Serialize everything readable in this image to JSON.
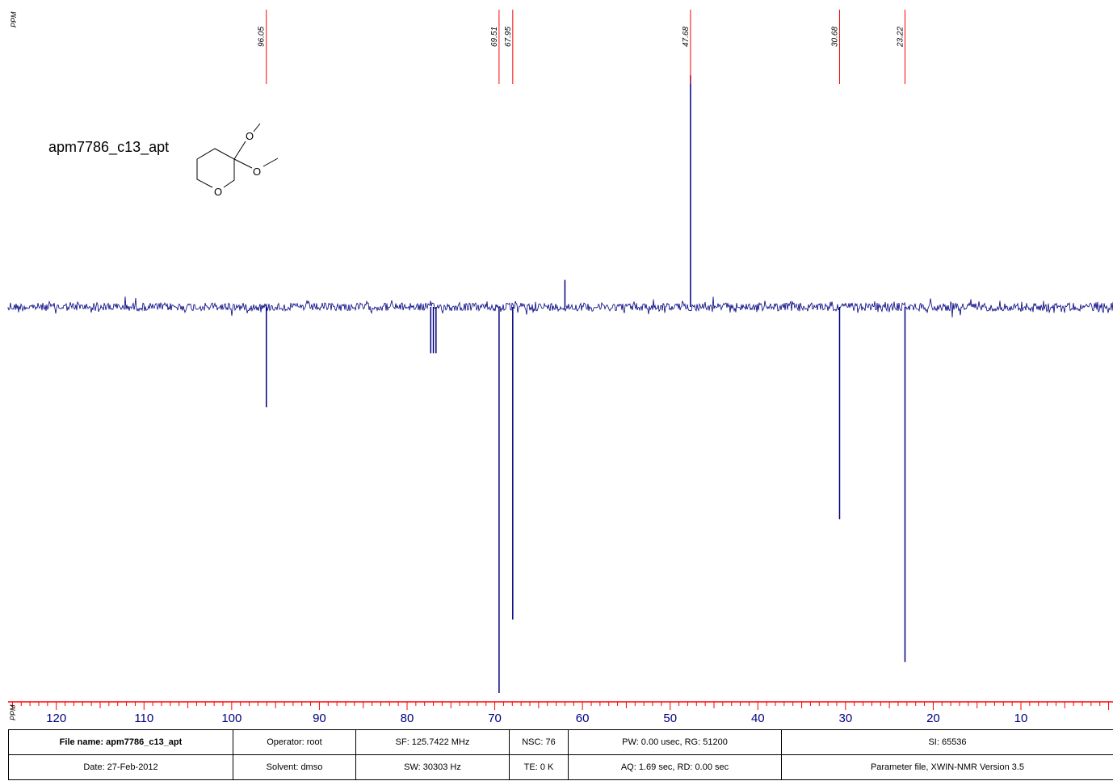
{
  "chart_data": {
    "type": "line",
    "title": "apm7786_c13_apt",
    "axis_unit": "PPM",
    "x_unit": "PPM",
    "xlim": [
      125.5,
      -0.5
    ],
    "x_reversed": true,
    "x_ticks": [
      120,
      110,
      100,
      90,
      80,
      70,
      60,
      50,
      40,
      30,
      20,
      10
    ],
    "peak_labels": [
      "96.05",
      "69.51",
      "67.95",
      "47.68",
      "30.68",
      "23.22"
    ],
    "peaks": [
      {
        "ppm": 96.05,
        "intensity": -0.26
      },
      {
        "ppm": 77.3,
        "intensity": -0.12
      },
      {
        "ppm": 77.0,
        "intensity": -0.12
      },
      {
        "ppm": 76.7,
        "intensity": -0.12
      },
      {
        "ppm": 69.51,
        "intensity": -1.0
      },
      {
        "ppm": 67.95,
        "intensity": -0.81
      },
      {
        "ppm": 62.0,
        "intensity": 0.07
      },
      {
        "ppm": 47.68,
        "intensity": 0.6
      },
      {
        "ppm": 30.68,
        "intensity": -0.55
      },
      {
        "ppm": 23.22,
        "intensity": -0.92
      }
    ],
    "colors": {
      "spectrum": "#000080",
      "peak_marker": "#ff0000",
      "axis": "#ff0000"
    }
  },
  "molecule": {
    "atoms": [
      "O",
      "O",
      "O"
    ],
    "description_icon": "3,3-dimethoxy-tetrahydropyran-structure"
  },
  "info_table": {
    "row1": [
      "File name: apm7786_c13_apt",
      "Operator: root",
      "SF: 125.7422 MHz",
      "NSC: 76",
      "PW: 0.00 usec, RG: 51200",
      "SI: 65536"
    ],
    "row2": [
      "Date: 27-Feb-2012",
      "Solvent: dmso",
      "SW: 30303 Hz",
      "TE: 0 K",
      "AQ: 1.69 sec, RD: 0.00 sec",
      "Parameter file, XWIN-NMR    Version 3.5"
    ]
  }
}
